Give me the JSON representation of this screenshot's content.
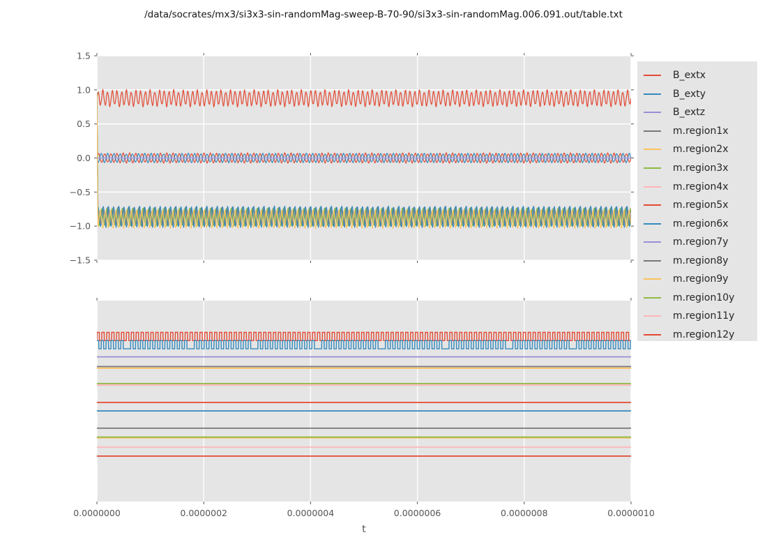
{
  "title": "/data/socrates/mx3/si3x3-sin-randomMag-sweep-B-70-90/si3x3-sin-randomMag.006.091.out/table.txt",
  "x_axis_label": "t",
  "colors": {
    "background": "#ffffff",
    "panel": "#E5E5E5",
    "grid": "#ffffff",
    "tick": "#555555",
    "tick_label": "#555555",
    "legend_text": "#262626",
    "palette": {
      "red": "#E24A33",
      "blue": "#348ABD",
      "purple": "#988ED5",
      "gray": "#777777",
      "orange": "#FBC15E",
      "green": "#8EBA42",
      "pink": "#FFB5B8"
    }
  },
  "legend": {
    "entries": [
      {
        "label": "B_extx",
        "color": "#E24A33"
      },
      {
        "label": "B_exty",
        "color": "#348ABD"
      },
      {
        "label": "B_extz",
        "color": "#988ED5"
      },
      {
        "label": "m.region1x",
        "color": "#777777"
      },
      {
        "label": "m.region2x",
        "color": "#FBC15E"
      },
      {
        "label": "m.region3x",
        "color": "#8EBA42"
      },
      {
        "label": "m.region4x",
        "color": "#FFB5B8"
      },
      {
        "label": "m.region5x",
        "color": "#E24A33"
      },
      {
        "label": "m.region6x",
        "color": "#348ABD"
      },
      {
        "label": "m.region7y",
        "color": "#988ED5"
      },
      {
        "label": "m.region8y",
        "color": "#777777"
      },
      {
        "label": "m.region9y",
        "color": "#FBC15E"
      },
      {
        "label": "m.region10y",
        "color": "#8EBA42"
      },
      {
        "label": "m.region11y",
        "color": "#FFB5B8"
      },
      {
        "label": "m.region12y",
        "color": "#E24A33"
      }
    ]
  },
  "chart_data": [
    {
      "type": "line",
      "title": "",
      "xlabel": "",
      "ylabel": "",
      "xlim": [
        0.0,
        1e-06
      ],
      "ylim": [
        -1.5,
        1.5
      ],
      "ytick_labels": [
        "1.5",
        "1.0",
        "0.5",
        "0.0",
        "−0.5",
        "−1.0",
        "−1.5"
      ],
      "grid": "white-on-gray, vertical and horizontal",
      "legend_position": "outside-right",
      "series": [
        {
          "name": "B_extx",
          "color": "#E24A33",
          "shape": "sine",
          "center": 0.877,
          "amp": 0.125,
          "cycles": 113,
          "phase": 0.0,
          "jitter": 0.35
        },
        {
          "name": "m.region5x",
          "color": "#E24A33",
          "shape": "sine",
          "center": 0.0,
          "amp": 0.075,
          "cycles": 86,
          "phase": 0.0,
          "jitter": 0.22
        },
        {
          "name": "B_exty",
          "color": "#348ABD",
          "shape": "sine",
          "center": 0.0,
          "amp": 0.07,
          "cycles": 86,
          "phase": 3.3,
          "jitter": 0.22
        },
        {
          "name": "B_extz",
          "color": "#988ED5",
          "shape": "sine",
          "center": 0.0,
          "amp": 0.012,
          "cycles": 86,
          "phase": 1.5,
          "jitter": 0.0
        },
        {
          "name": "m.region1x",
          "color": "#777777",
          "shape": "sine",
          "center": -0.86,
          "amp": 0.135,
          "cycles": 103,
          "phase": 1.1,
          "jitter": 0.12,
          "start_at": 0.95
        },
        {
          "name": "m.region3x",
          "color": "#8EBA42",
          "shape": "sine",
          "center": -0.87,
          "amp": 0.13,
          "cycles": 103,
          "phase": 2.3,
          "jitter": 0.12,
          "start_at": 0.95
        },
        {
          "name": "m.region6x",
          "color": "#348ABD",
          "shape": "sine",
          "center": -0.863,
          "amp": 0.155,
          "cycles": 103,
          "phase": 0.2,
          "jitter": 0.1,
          "start_at": 0.9
        },
        {
          "name": "m.region2x",
          "color": "#FBC15E",
          "shape": "sine",
          "center": -0.9,
          "amp": 0.13,
          "cycles": 103,
          "phase": 3.8,
          "jitter": 0.1,
          "start_at": 0.93
        }
      ]
    },
    {
      "type": "line",
      "title": "",
      "xlabel": "t",
      "ylabel": "",
      "xlim": [
        0.0,
        1e-06
      ],
      "xtick_labels": [
        "0.0000000",
        "0.0000002",
        "0.0000004",
        "0.0000006",
        "0.0000008",
        "0.0000010"
      ],
      "ytick_labels": [],
      "grid": "white-on-gray, vertical only",
      "y_units": "unlabeled; y values given as fraction of panel height from top",
      "series": [
        {
          "name": "square-red",
          "color": "#E24A33",
          "shape": "square",
          "y_hi": 0.158,
          "y_lo": 0.199,
          "cycles": 109,
          "phase": 0.0
        },
        {
          "name": "square-blue",
          "color": "#348ABD",
          "shape": "square",
          "y_hi": 0.199,
          "y_lo": 0.24,
          "cycles": 109,
          "phase": 0.8,
          "skip": 13
        },
        {
          "name": "flat-purple",
          "color": "#988ED5",
          "shape": "flat",
          "y": 0.28
        },
        {
          "name": "flat-gray-1",
          "color": "#777777",
          "shape": "flat",
          "y": 0.328
        },
        {
          "name": "flat-orange-1",
          "color": "#FBC15E",
          "shape": "flat",
          "y": 0.336
        },
        {
          "name": "flat-salmon",
          "color": "#FFB5B8",
          "shape": "flat",
          "y": 0.421
        },
        {
          "name": "flat-green-1",
          "color": "#8EBA42",
          "shape": "flat",
          "y": 0.413
        },
        {
          "name": "flat-red-1",
          "color": "#E24A33",
          "shape": "flat",
          "y": 0.507
        },
        {
          "name": "flat-blue",
          "color": "#348ABD",
          "shape": "flat",
          "y": 0.549
        },
        {
          "name": "flat-gray-2",
          "color": "#777777",
          "shape": "flat",
          "y": 0.635
        },
        {
          "name": "flat-orange-2",
          "color": "#FBC15E",
          "shape": "flat",
          "y": 0.683
        },
        {
          "name": "flat-green-2",
          "color": "#8EBA42",
          "shape": "flat",
          "y": 0.679
        },
        {
          "name": "flat-pink",
          "color": "#FFB5B8",
          "shape": "flat",
          "y": 0.729
        },
        {
          "name": "flat-red-2",
          "color": "#E24A33",
          "shape": "flat",
          "y": 0.774
        }
      ]
    }
  ]
}
